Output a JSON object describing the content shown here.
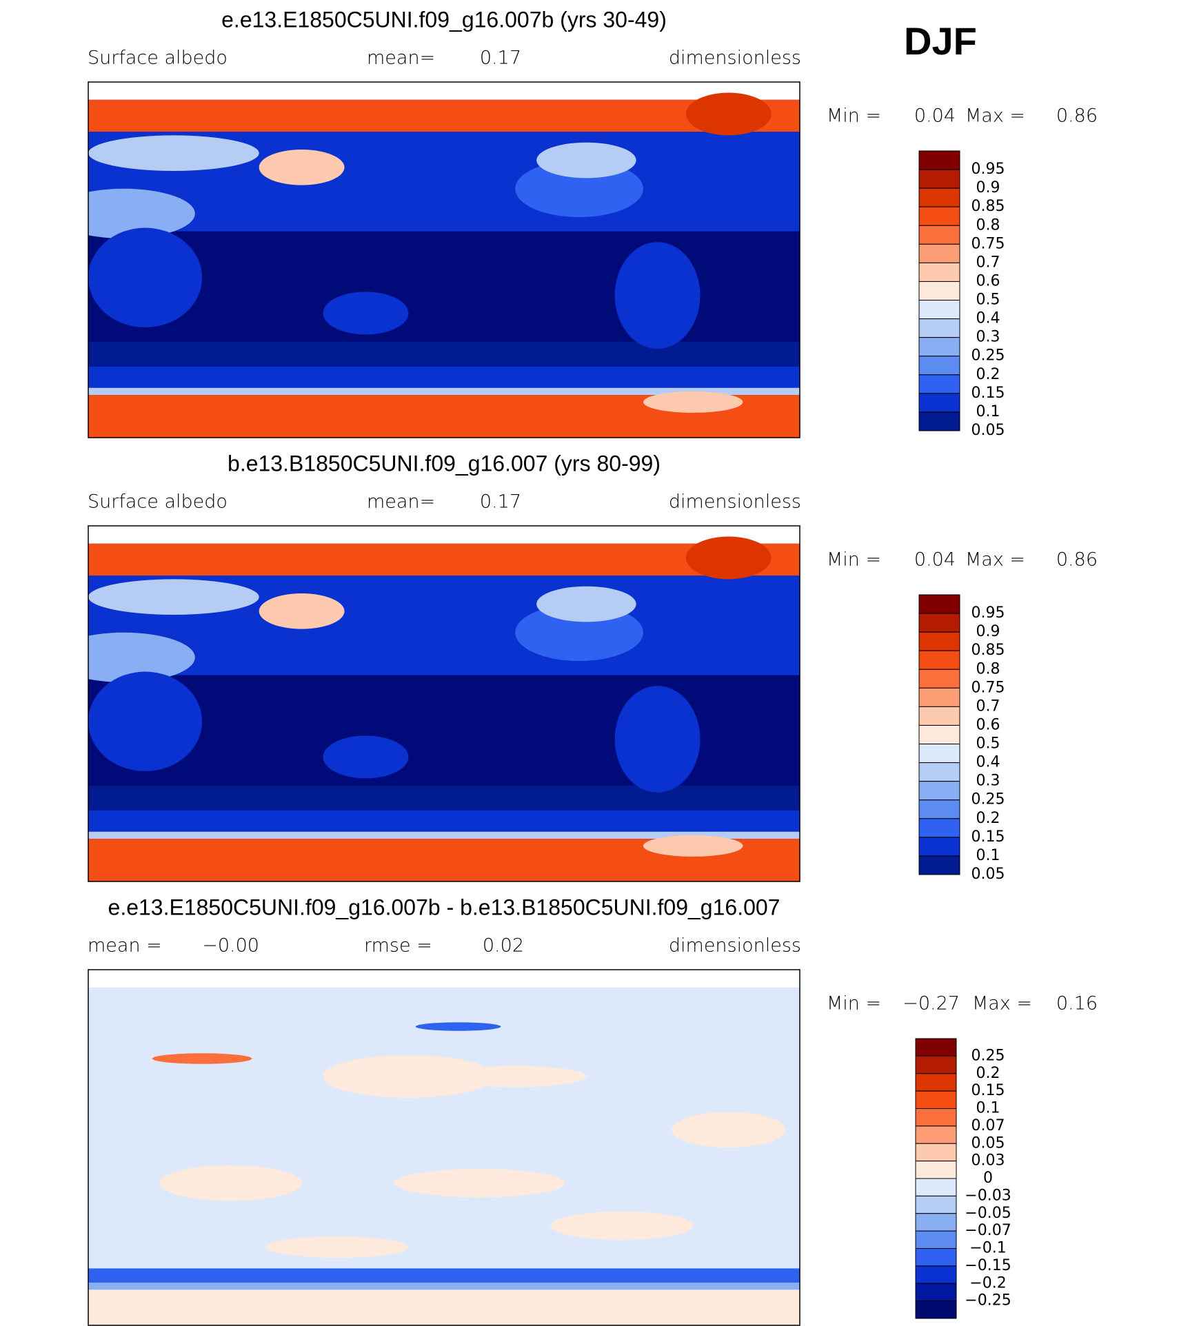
{
  "header": {
    "season": "DJF"
  },
  "panels": [
    {
      "title": "e.e13.E1850C5UNI.f09_g16.007b (yrs 30-49)",
      "left_label": "Surface albedo",
      "stat1_label": "mean=",
      "stat1_value": "0.17",
      "units": "dimensionless",
      "min_label": "Min =",
      "min_value": "0.04",
      "max_label": "Max =",
      "max_value": "0.86",
      "colorbar_labels": [
        "0.95",
        "0.9",
        "0.85",
        "0.8",
        "0.75",
        "0.7",
        "0.6",
        "0.5",
        "0.4",
        "0.3",
        "0.25",
        "0.2",
        "0.15",
        "0.1",
        "0.05"
      ],
      "colors": [
        "#800000",
        "#b31c00",
        "#dc3500",
        "#f44e14",
        "#fa6f3c",
        "#fc9d76",
        "#fdcab0",
        "#fdeadc",
        "#dde9fa",
        "#b5cdf5",
        "#8aaef3",
        "#5c8cf2",
        "#2f62f0",
        "#0a32d0",
        "#001a90",
        "#000a78"
      ]
    },
    {
      "title": "b.e13.B1850C5UNI.f09_g16.007 (yrs 80-99)",
      "left_label": "Surface albedo",
      "stat1_label": "mean=",
      "stat1_value": "0.17",
      "units": "dimensionless",
      "min_label": "Min =",
      "min_value": "0.04",
      "max_label": "Max =",
      "max_value": "0.86",
      "colorbar_labels": [
        "0.95",
        "0.9",
        "0.85",
        "0.8",
        "0.75",
        "0.7",
        "0.6",
        "0.5",
        "0.4",
        "0.3",
        "0.25",
        "0.2",
        "0.15",
        "0.1",
        "0.05"
      ],
      "colors": [
        "#800000",
        "#b31c00",
        "#dc3500",
        "#f44e14",
        "#fa6f3c",
        "#fc9d76",
        "#fdcab0",
        "#fdeadc",
        "#dde9fa",
        "#b5cdf5",
        "#8aaef3",
        "#5c8cf2",
        "#2f62f0",
        "#0a32d0",
        "#001a90",
        "#000a78"
      ]
    },
    {
      "title": "e.e13.E1850C5UNI.f09_g16.007b - b.e13.B1850C5UNI.f09_g16.007",
      "left_label": "mean =",
      "left_value": "−0.00",
      "stat1_label": "rmse =",
      "stat1_value": "0.02",
      "units": "dimensionless",
      "min_label": "Min =",
      "min_value": "−0.27",
      "max_label": "Max =",
      "max_value": "0.16",
      "colorbar_labels": [
        "0.25",
        "0.2",
        "0.15",
        "0.1",
        "0.07",
        "0.05",
        "0.03",
        "0",
        "−0.03",
        "−0.05",
        "−0.07",
        "−0.1",
        "−0.15",
        "−0.2",
        "−0.25"
      ],
      "colors": [
        "#800000",
        "#b31c00",
        "#dc3500",
        "#f44e14",
        "#fa6f3c",
        "#fc9d76",
        "#fdcab0",
        "#fdeadc",
        "#dde9fa",
        "#b5cdf5",
        "#8aaef3",
        "#5c8cf2",
        "#2f62f0",
        "#0a32d0",
        "#0018a0",
        "#000a70"
      ]
    }
  ]
}
